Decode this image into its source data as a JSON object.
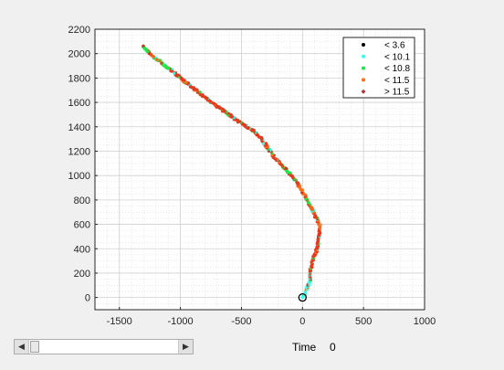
{
  "controls": {
    "time_label": "Time",
    "time_value": "0",
    "slider_value": 0
  },
  "chart_data": {
    "type": "scatter",
    "xlim": [
      -1700,
      1000
    ],
    "ylim": [
      -100,
      2200
    ],
    "xticks": [
      -1500,
      -1000,
      -500,
      0,
      500,
      1000
    ],
    "xtick_labels": [
      "-1500",
      "-1000",
      "-500",
      "0",
      "500",
      "1000"
    ],
    "yticks": [
      0,
      200,
      400,
      600,
      800,
      1000,
      1200,
      1400,
      1600,
      1800,
      2000,
      2200
    ],
    "ytick_labels": [
      "0",
      "200",
      "400",
      "600",
      "800",
      "1000",
      "1200",
      "1400",
      "1600",
      "1800",
      "2000",
      "2200"
    ],
    "grid": true,
    "minor_grid": true,
    "legend_position": "top-right",
    "legend": [
      {
        "label": "< 3.6",
        "color": "#000000",
        "marker": "dot"
      },
      {
        "label": "< 10.1",
        "color": "#33ffe8",
        "marker": "dot"
      },
      {
        "label": "< 10.8",
        "color": "#1ee646",
        "marker": "dot"
      },
      {
        "label": "< 11.5",
        "color": "#ff6a1a",
        "marker": "dot"
      },
      {
        "label": "> 11.5",
        "color": "#b03a3a",
        "marker": "diamond"
      }
    ],
    "track": [
      [
        0,
        0
      ],
      [
        15,
        20
      ],
      [
        40,
        80
      ],
      [
        60,
        140
      ],
      [
        65,
        200
      ],
      [
        70,
        250
      ],
      [
        80,
        300
      ],
      [
        110,
        370
      ],
      [
        125,
        430
      ],
      [
        130,
        490
      ],
      [
        140,
        540
      ],
      [
        145,
        580
      ],
      [
        130,
        620
      ],
      [
        100,
        680
      ],
      [
        60,
        760
      ],
      [
        20,
        840
      ],
      [
        -40,
        930
      ],
      [
        -100,
        1010
      ],
      [
        -170,
        1090
      ],
      [
        -250,
        1170
      ],
      [
        -300,
        1250
      ],
      [
        -350,
        1320
      ],
      [
        -420,
        1380
      ],
      [
        -520,
        1440
      ],
      [
        -600,
        1500
      ],
      [
        -670,
        1550
      ],
      [
        -700,
        1570
      ],
      [
        -800,
        1640
      ],
      [
        -900,
        1720
      ],
      [
        -1000,
        1800
      ],
      [
        -1100,
        1880
      ],
      [
        -1200,
        1960
      ],
      [
        -1260,
        2010
      ],
      [
        -1310,
        2060
      ]
    ],
    "start_marker": [
      0,
      0
    ]
  }
}
